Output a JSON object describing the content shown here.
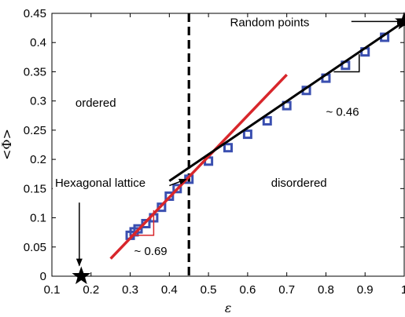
{
  "chart_data": {
    "type": "line",
    "xlabel": "ε",
    "ylabel": "<Φ>",
    "xlim": [
      0.1,
      1.0
    ],
    "ylim": [
      0,
      0.45
    ],
    "xticks": [
      0.1,
      0.2,
      0.3,
      0.4,
      0.5,
      0.6,
      0.7,
      0.8,
      0.9,
      1.0
    ],
    "yticks": [
      0,
      0.05,
      0.1,
      0.15,
      0.2,
      0.25,
      0.3,
      0.35,
      0.4,
      0.45
    ],
    "xtick_labels": [
      "0.1",
      "0.2",
      "0.3",
      "0.4",
      "0.5",
      "0.6",
      "0.7",
      "0.8",
      "0.9",
      "1"
    ],
    "ytick_labels": [
      "0",
      "0.05",
      "0.1",
      "0.15",
      "0.2",
      "0.25",
      "0.3",
      "0.35",
      "0.4",
      "0.45"
    ],
    "grid": false,
    "series": [
      {
        "marker": "square",
        "color": "#3a4fb0",
        "x": [
          0.3,
          0.31,
          0.32,
          0.34,
          0.36,
          0.38,
          0.4,
          0.42,
          0.45,
          0.5,
          0.55,
          0.6,
          0.65,
          0.7,
          0.75,
          0.8,
          0.85,
          0.9,
          0.95
        ],
        "y": [
          0.07,
          0.076,
          0.081,
          0.09,
          0.1,
          0.118,
          0.137,
          0.15,
          0.166,
          0.197,
          0.22,
          0.243,
          0.266,
          0.292,
          0.318,
          0.339,
          0.361,
          0.384,
          0.409
        ]
      },
      {
        "style": "line",
        "color": "#d8262b",
        "x": [
          0.25,
          0.7
        ],
        "y": [
          0.03,
          0.345
        ]
      },
      {
        "style": "line",
        "color": "#000000",
        "x": [
          0.4,
          1.0
        ],
        "y": [
          0.163,
          0.436
        ]
      }
    ],
    "vline": {
      "x": 0.45,
      "style": "dashed",
      "color": "#000000"
    },
    "special_points": [
      {
        "x": 0.175,
        "y": 0.0,
        "marker": "star",
        "color": "#000000"
      },
      {
        "x": 1.0,
        "y": 0.436,
        "marker": "star",
        "color": "#000000"
      }
    ],
    "slope_triangles": [
      {
        "color": "#d8262b",
        "x1": 0.3,
        "x2": 0.36,
        "y1": 0.07,
        "y2": 0.113
      },
      {
        "color": "#000000",
        "x1": 0.82,
        "x2": 0.885,
        "y1": 0.35,
        "y2": 0.38
      }
    ],
    "annotations": [
      {
        "text": "Random points",
        "x": 0.555,
        "y": 0.428,
        "color": "#000000"
      },
      {
        "text": "ordered",
        "x": 0.16,
        "y": 0.29,
        "color": "#000000"
      },
      {
        "text": "disordered",
        "x": 0.66,
        "y": 0.153,
        "color": "#000000"
      },
      {
        "text": "Hexagonal lattice",
        "x": 0.108,
        "y": 0.153,
        "color": "#000000"
      },
      {
        "text": "~ 0.46",
        "x": 0.8,
        "y": 0.275,
        "color": "#000000"
      },
      {
        "text": "~ 0.69",
        "x": 0.31,
        "y": 0.036,
        "color": "#d8262b"
      }
    ],
    "arrows": [
      {
        "from": [
          0.865,
          0.436
        ],
        "to": [
          1.0,
          0.436
        ]
      },
      {
        "from": [
          0.4,
          0.155
        ],
        "to": [
          0.443,
          0.166
        ]
      },
      {
        "from": [
          0.17,
          0.126
        ],
        "to": [
          0.17,
          0.018
        ]
      }
    ]
  }
}
